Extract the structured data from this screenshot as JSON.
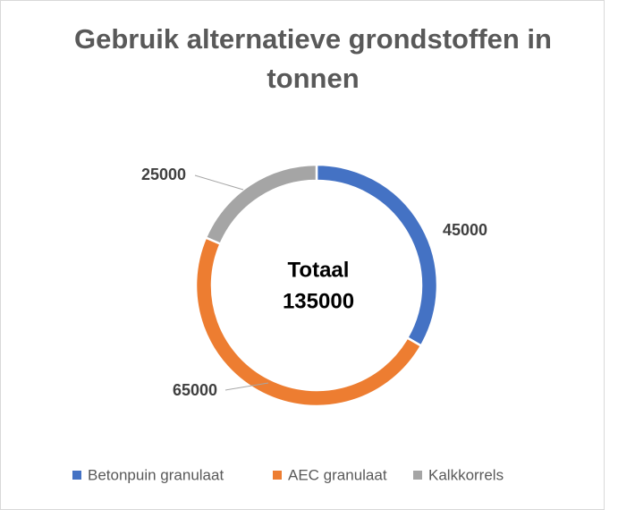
{
  "chart_data": {
    "type": "donut",
    "title": "Gebruik alternatieve grondstoffen in tonnen",
    "categories": [
      "Betonpuin granulaat",
      "AEC granulaat",
      "Kalkkorrels"
    ],
    "values": [
      45000,
      65000,
      25000
    ],
    "colors": [
      "#4472c4",
      "#ed7d31",
      "#a5a5a5"
    ],
    "annotation": {
      "label": "Totaal",
      "value": 135000
    },
    "legend": "bottom"
  }
}
